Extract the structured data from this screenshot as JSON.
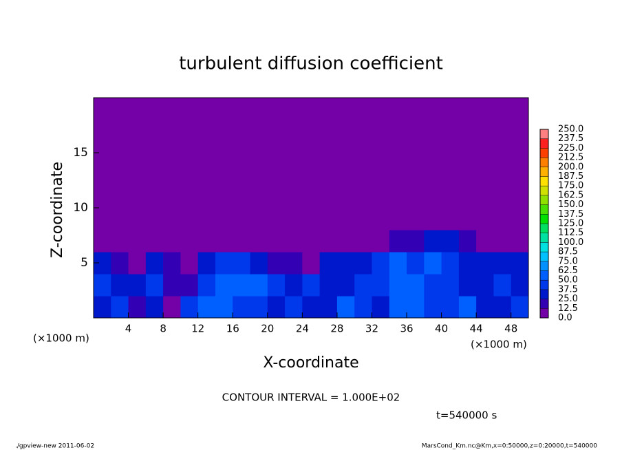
{
  "chart_data": {
    "type": "heatmap",
    "title": "turbulent diffusion coefficient",
    "xlabel": "X-coordinate",
    "ylabel": "Z-coordinate",
    "x_unit_left": "(×1000 m)",
    "x_unit_right": "(×1000 m)",
    "xlim": [
      0,
      50
    ],
    "ylim": [
      0,
      20
    ],
    "xticks": [
      4,
      8,
      12,
      16,
      20,
      24,
      28,
      32,
      36,
      40,
      44,
      48
    ],
    "yticks": [
      5,
      10,
      15
    ],
    "x": [
      0,
      2,
      4,
      6,
      8,
      10,
      12,
      14,
      16,
      18,
      20,
      22,
      24,
      26,
      28,
      30,
      32,
      34,
      36,
      38,
      40,
      42,
      44,
      46,
      48,
      50
    ],
    "z": [
      0,
      2,
      4,
      6,
      8,
      10,
      12,
      14,
      16,
      18,
      20
    ],
    "values": [
      [
        30,
        40,
        20,
        35,
        10,
        40,
        60,
        50,
        45,
        40,
        30,
        40,
        35,
        30,
        50,
        40,
        30,
        60,
        55,
        40,
        45,
        50,
        30,
        35,
        40
      ],
      [
        40,
        30,
        25,
        45,
        20,
        15,
        45,
        55,
        60,
        50,
        40,
        35,
        40,
        35,
        30,
        40,
        45,
        55,
        50,
        45,
        40,
        35,
        30,
        40,
        35
      ],
      [
        35,
        20,
        10,
        25,
        15,
        5,
        30,
        40,
        45,
        35,
        20,
        15,
        10,
        30,
        25,
        30,
        40,
        50,
        45,
        55,
        45,
        35,
        30,
        25,
        30
      ],
      [
        0,
        0,
        0,
        0,
        0,
        0,
        0,
        0,
        0,
        0,
        0,
        0,
        0,
        0,
        0,
        0,
        0,
        15,
        20,
        30,
        25,
        15,
        10,
        0,
        0
      ],
      [
        0,
        0,
        0,
        0,
        0,
        0,
        0,
        0,
        0,
        0,
        0,
        0,
        0,
        0,
        0,
        0,
        0,
        0,
        0,
        0,
        0,
        0,
        0,
        0,
        0
      ],
      [
        0,
        0,
        0,
        0,
        0,
        0,
        0,
        0,
        0,
        0,
        0,
        0,
        0,
        0,
        0,
        0,
        0,
        0,
        0,
        0,
        0,
        0,
        0,
        0,
        0
      ],
      [
        0,
        0,
        0,
        0,
        0,
        0,
        0,
        0,
        0,
        0,
        0,
        0,
        0,
        0,
        0,
        0,
        0,
        0,
        0,
        0,
        0,
        0,
        0,
        0,
        0
      ],
      [
        0,
        0,
        0,
        0,
        0,
        0,
        0,
        0,
        0,
        0,
        0,
        0,
        0,
        0,
        0,
        0,
        0,
        0,
        0,
        0,
        0,
        0,
        0,
        0,
        0
      ],
      [
        0,
        0,
        0,
        0,
        0,
        0,
        0,
        0,
        0,
        0,
        0,
        0,
        0,
        0,
        0,
        0,
        0,
        0,
        0,
        0,
        0,
        0,
        0,
        0,
        0
      ],
      [
        0,
        0,
        0,
        0,
        0,
        0,
        0,
        0,
        0,
        0,
        0,
        0,
        0,
        0,
        0,
        0,
        0,
        0,
        0,
        0,
        0,
        0,
        0,
        0,
        0
      ]
    ],
    "levels": [
      {
        "value": 0,
        "label": "0.0"
      },
      {
        "value": 12.5,
        "label": "12.5"
      },
      {
        "value": 25,
        "label": "25.0"
      },
      {
        "value": 37.5,
        "label": "37.5"
      },
      {
        "value": 50,
        "label": "50.0"
      },
      {
        "value": 62.5,
        "label": "62.5"
      },
      {
        "value": 75,
        "label": "75.0"
      },
      {
        "value": 87.5,
        "label": "87.5"
      },
      {
        "value": 100,
        "label": "100.0"
      },
      {
        "value": 112.5,
        "label": "112.5"
      },
      {
        "value": 125,
        "label": "125.0"
      },
      {
        "value": 137.5,
        "label": "137.5"
      },
      {
        "value": 150,
        "label": "150.0"
      },
      {
        "value": 162.5,
        "label": "162.5"
      },
      {
        "value": 175,
        "label": "175.0"
      },
      {
        "value": 187.5,
        "label": "187.5"
      },
      {
        "value": 200,
        "label": "200.0"
      },
      {
        "value": 212.5,
        "label": "212.5"
      },
      {
        "value": 225,
        "label": "225.0"
      },
      {
        "value": 237.5,
        "label": "237.5"
      },
      {
        "value": 250,
        "label": "250.0"
      }
    ],
    "colors": [
      "#7400a8",
      "#3400b4",
      "#0018cc",
      "#0038ec",
      "#0060ff",
      "#0090ff",
      "#00c0ff",
      "#00e0e0",
      "#00e0a0",
      "#00e060",
      "#00e000",
      "#48e000",
      "#90e000",
      "#d0e000",
      "#ffe000",
      "#ffb000",
      "#ff8000",
      "#ff4000",
      "#ff2020",
      "#ff8080"
    ],
    "contour_interval": "CONTOUR INTERVAL = 1.000E+02",
    "time_label": "t=540000 s",
    "footer_left": "./gpview-new   2011-06-02",
    "footer_right": "MarsCond_Km.nc@Km,x=0:50000,z=0:20000,t=540000"
  }
}
